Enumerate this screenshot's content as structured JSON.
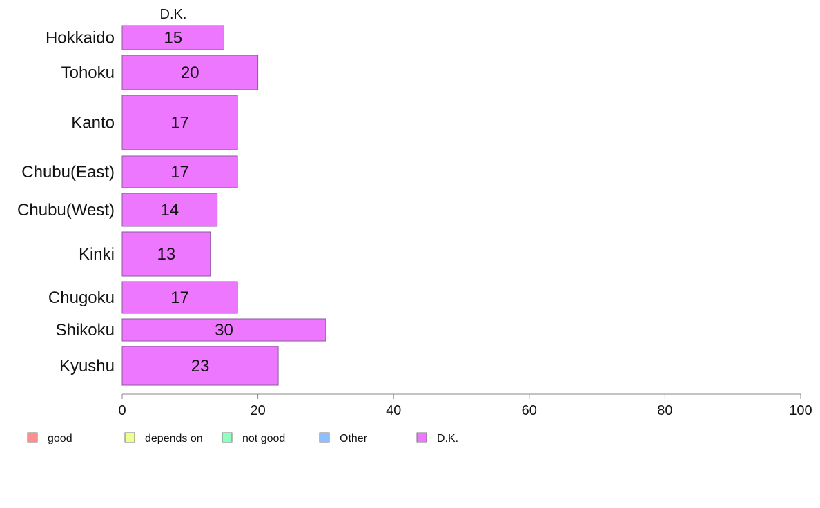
{
  "chart_data": {
    "type": "bar",
    "orientation": "horizontal",
    "panel_title": "D.K.",
    "categories": [
      "Hokkaido",
      "Tohoku",
      "Kanto",
      "Chubu(East)",
      "Chubu(West)",
      "Kinki",
      "Chugoku",
      "Shikoku",
      "Kyushu"
    ],
    "series": [
      {
        "name": "D.K.",
        "color": "#ee77ff",
        "values": [
          15,
          20,
          17,
          17,
          14,
          13,
          17,
          30,
          23
        ]
      }
    ],
    "bar_labels": [
      "15",
      "20",
      "17",
      "17",
      "14",
      "13",
      "17",
      "30",
      "23"
    ],
    "xlim": [
      0,
      100
    ],
    "x_ticks": [
      0,
      20,
      40,
      60,
      80,
      100
    ],
    "x_tick_labels": [
      "0",
      "20",
      "40",
      "60",
      "80",
      "100"
    ],
    "grid": false,
    "legend_position": "bottom",
    "legend": [
      {
        "label": "good",
        "color": "#ff8f8f"
      },
      {
        "label": "depends on",
        "color": "#eeff8f"
      },
      {
        "label": "not good",
        "color": "#8fffbf"
      },
      {
        "label": "Other",
        "color": "#8fbfff"
      },
      {
        "label": "D.K.",
        "color": "#ee77ff"
      }
    ]
  }
}
